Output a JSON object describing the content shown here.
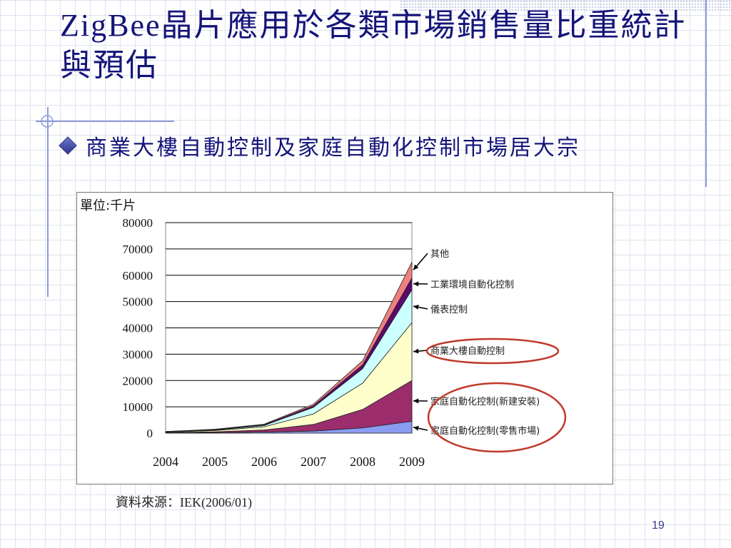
{
  "slide": {
    "title": "ZigBee晶片應用於各類市場銷售量比重統計與預估",
    "bullet": "商業大樓自動控制及家庭自動化控制市場居大宗",
    "source": "資料來源：IEK(2006/01)",
    "page_number": "19"
  },
  "chart_data": {
    "type": "area",
    "stacked": true,
    "unit_label": "單位:千片",
    "x": [
      "2004",
      "2005",
      "2006",
      "2007",
      "2008",
      "2009"
    ],
    "ylim": [
      0,
      80000
    ],
    "yticks": [
      "0",
      "10000",
      "20000",
      "30000",
      "40000",
      "50000",
      "60000",
      "70000",
      "80000"
    ],
    "grid": "horizontal",
    "series": [
      {
        "name": "家庭自動化控制(零售市場)",
        "color": "#8a9cf0",
        "values": [
          100,
          200,
          400,
          800,
          2000,
          4500
        ]
      },
      {
        "name": "家庭自動化控制(新建安裝)",
        "color": "#9b2d6d",
        "values": [
          100,
          300,
          800,
          2500,
          7000,
          15500
        ]
      },
      {
        "name": "商業大樓自動控制",
        "color": "#ffffcc",
        "values": [
          200,
          500,
          1200,
          4000,
          10000,
          22000
        ]
      },
      {
        "name": "儀表控制",
        "color": "#ccffff",
        "values": [
          100,
          200,
          500,
          2500,
          5500,
          12500
        ]
      },
      {
        "name": "工業環境自動化控制",
        "color": "#5a0a6e",
        "values": [
          100,
          200,
          300,
          600,
          1500,
          4500
        ]
      },
      {
        "name": "其他",
        "color": "#f08080",
        "values": [
          0,
          100,
          200,
          600,
          1500,
          6000
        ]
      }
    ],
    "highlight_color": "#c0392b"
  }
}
